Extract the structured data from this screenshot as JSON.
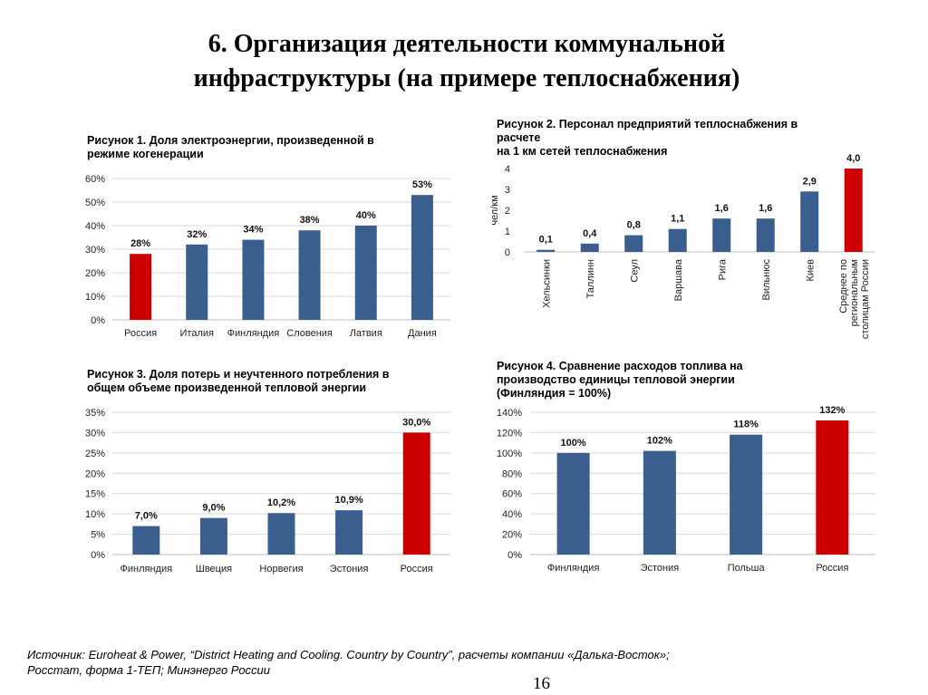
{
  "slide": {
    "title_lines": [
      "6. Организация деятельности коммунальной",
      "инфраструктуры (на примере теплоснабжения)"
    ],
    "source_lines": [
      "Источник: Euroheat & Power, “District Heating and Cooling. Country by Country”, расчеты компании «Далька-Восток»;",
      "Росстат, форма 1-ТЕП; Минэнерго России"
    ],
    "page_number": "16"
  },
  "colors": {
    "blue": "#3a5f8f",
    "red": "#cc0000",
    "grid": "#d9d9d9"
  },
  "chart_data": [
    {
      "id": "fig1",
      "type": "bar",
      "title_lines": [
        "Рисунок 1. Доля электроэнергии, произведенной в",
        "режиме когенерации"
      ],
      "categories": [
        "Россия",
        "Италия",
        "Финляндия",
        "Словения",
        "Латвия",
        "Дания"
      ],
      "values": [
        28,
        32,
        34,
        38,
        40,
        53
      ],
      "value_labels": [
        "28%",
        "32%",
        "34%",
        "38%",
        "40%",
        "53%"
      ],
      "highlight": [
        true,
        false,
        false,
        false,
        false,
        false
      ],
      "yticks": [
        "0%",
        "10%",
        "20%",
        "30%",
        "40%",
        "50%",
        "60%"
      ],
      "ylim": [
        0,
        60
      ],
      "ylabel": "",
      "xlabel": "",
      "grid": true
    },
    {
      "id": "fig2",
      "type": "bar",
      "title_lines": [
        "Рисунок 2. Персонал предприятий теплоснабжения в",
        "расчете",
        "на 1 км сетей теплоснабжения"
      ],
      "categories": [
        "Хельсинки",
        "Таллинн",
        "Сеул",
        "Варшава",
        "Рига",
        "Вильнюс",
        "Киев",
        "Среднее по региональным столицам России"
      ],
      "category_lines": [
        [
          "Хельсинки"
        ],
        [
          "Таллинн"
        ],
        [
          "Сеул"
        ],
        [
          "Варшава"
        ],
        [
          "Рига"
        ],
        [
          "Вильнюс"
        ],
        [
          "Киев"
        ],
        [
          "Среднее по",
          "региональным",
          "столицам России"
        ]
      ],
      "values": [
        0.1,
        0.4,
        0.8,
        1.1,
        1.6,
        1.6,
        2.9,
        4.0
      ],
      "value_labels": [
        "0,1",
        "0,4",
        "0,8",
        "1,1",
        "1,6",
        "1,6",
        "2,9",
        "4,0"
      ],
      "highlight": [
        false,
        false,
        false,
        false,
        false,
        false,
        false,
        true
      ],
      "yticks": [
        "0",
        "1",
        "2",
        "3",
        "4"
      ],
      "ylim": [
        0,
        4
      ],
      "ylabel": "чел/км",
      "xlabel": "",
      "grid": false
    },
    {
      "id": "fig3",
      "type": "bar",
      "title_lines": [
        "Рисунок 3. Доля потерь и неучтенного потребления  в",
        "общем объеме произведенной тепловой энергии"
      ],
      "categories": [
        "Финляндия",
        "Швеция",
        "Норвегия",
        "Эстония",
        "Россия"
      ],
      "values": [
        7.0,
        9.0,
        10.2,
        10.9,
        30.0
      ],
      "value_labels": [
        "7,0%",
        "9,0%",
        "10,2%",
        "10,9%",
        "30,0%"
      ],
      "highlight": [
        false,
        false,
        false,
        false,
        true
      ],
      "yticks": [
        "0%",
        "5%",
        "10%",
        "15%",
        "20%",
        "25%",
        "30%",
        "35%"
      ],
      "ylim": [
        0,
        35
      ],
      "ylabel": "",
      "xlabel": "",
      "grid": true
    },
    {
      "id": "fig4",
      "type": "bar",
      "title_lines": [
        "Рисунок 4. Сравнение расходов топлива на",
        "производство единицы тепловой энергии",
        "(Финляндия = 100%)"
      ],
      "categories": [
        "Финляндия",
        "Эстония",
        "Польша",
        "Россия"
      ],
      "values": [
        100,
        102,
        118,
        132
      ],
      "value_labels": [
        "100%",
        "102%",
        "118%",
        "132%"
      ],
      "highlight": [
        false,
        false,
        false,
        true
      ],
      "yticks": [
        "0%",
        "20%",
        "40%",
        "60%",
        "80%",
        "100%",
        "120%",
        "140%"
      ],
      "ylim": [
        0,
        140
      ],
      "ylabel": "",
      "xlabel": "",
      "grid": true
    }
  ]
}
